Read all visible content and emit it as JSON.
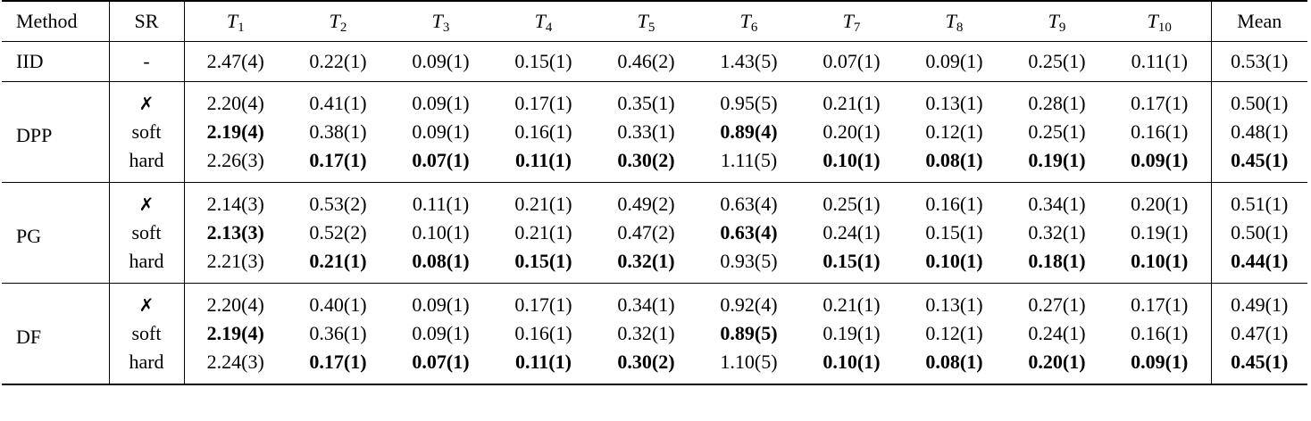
{
  "header": {
    "method": "Method",
    "sr": "SR",
    "tasks": [
      {
        "base": "T",
        "sub": "1"
      },
      {
        "base": "T",
        "sub": "2"
      },
      {
        "base": "T",
        "sub": "3"
      },
      {
        "base": "T",
        "sub": "4"
      },
      {
        "base": "T",
        "sub": "5"
      },
      {
        "base": "T",
        "sub": "6"
      },
      {
        "base": "T",
        "sub": "7"
      },
      {
        "base": "T",
        "sub": "8"
      },
      {
        "base": "T",
        "sub": "9"
      },
      {
        "base": "T",
        "sub": "10"
      }
    ],
    "mean": "Mean"
  },
  "iid": {
    "method": "IID",
    "sr": "-",
    "values": [
      "2.47(4)",
      "0.22(1)",
      "0.09(1)",
      "0.15(1)",
      "0.46(2)",
      "1.43(5)",
      "0.07(1)",
      "0.09(1)",
      "0.25(1)",
      "0.11(1)"
    ],
    "mean": "0.53(1)"
  },
  "groups": [
    {
      "method": "DPP",
      "rows": [
        {
          "sr": "✗",
          "values": [
            "2.20(4)",
            "0.41(1)",
            "0.09(1)",
            "0.17(1)",
            "0.35(1)",
            "0.95(5)",
            "0.21(1)",
            "0.13(1)",
            "0.28(1)",
            "0.17(1)"
          ],
          "mean": "0.50(1)",
          "bold": []
        },
        {
          "sr": "soft",
          "values": [
            "2.19(4)",
            "0.38(1)",
            "0.09(1)",
            "0.16(1)",
            "0.33(1)",
            "0.89(4)",
            "0.20(1)",
            "0.12(1)",
            "0.25(1)",
            "0.16(1)"
          ],
          "mean": "0.48(1)",
          "bold": [
            0,
            5
          ]
        },
        {
          "sr": "hard",
          "values": [
            "2.26(3)",
            "0.17(1)",
            "0.07(1)",
            "0.11(1)",
            "0.30(2)",
            "1.11(5)",
            "0.10(1)",
            "0.08(1)",
            "0.19(1)",
            "0.09(1)"
          ],
          "mean": "0.45(1)",
          "bold": [
            1,
            2,
            3,
            4,
            6,
            7,
            8,
            9,
            10
          ]
        }
      ]
    },
    {
      "method": "PG",
      "rows": [
        {
          "sr": "✗",
          "values": [
            "2.14(3)",
            "0.53(2)",
            "0.11(1)",
            "0.21(1)",
            "0.49(2)",
            "0.63(4)",
            "0.25(1)",
            "0.16(1)",
            "0.34(1)",
            "0.20(1)"
          ],
          "mean": "0.51(1)",
          "bold": []
        },
        {
          "sr": "soft",
          "values": [
            "2.13(3)",
            "0.52(2)",
            "0.10(1)",
            "0.21(1)",
            "0.47(2)",
            "0.63(4)",
            "0.24(1)",
            "0.15(1)",
            "0.32(1)",
            "0.19(1)"
          ],
          "mean": "0.50(1)",
          "bold": [
            0,
            5
          ]
        },
        {
          "sr": "hard",
          "values": [
            "2.21(3)",
            "0.21(1)",
            "0.08(1)",
            "0.15(1)",
            "0.32(1)",
            "0.93(5)",
            "0.15(1)",
            "0.10(1)",
            "0.18(1)",
            "0.10(1)"
          ],
          "mean": "0.44(1)",
          "bold": [
            1,
            2,
            3,
            4,
            6,
            7,
            8,
            9,
            10
          ]
        }
      ]
    },
    {
      "method": "DF",
      "rows": [
        {
          "sr": "✗",
          "values": [
            "2.20(4)",
            "0.40(1)",
            "0.09(1)",
            "0.17(1)",
            "0.34(1)",
            "0.92(4)",
            "0.21(1)",
            "0.13(1)",
            "0.27(1)",
            "0.17(1)"
          ],
          "mean": "0.49(1)",
          "bold": []
        },
        {
          "sr": "soft",
          "values": [
            "2.19(4)",
            "0.36(1)",
            "0.09(1)",
            "0.16(1)",
            "0.32(1)",
            "0.89(5)",
            "0.19(1)",
            "0.12(1)",
            "0.24(1)",
            "0.16(1)"
          ],
          "mean": "0.47(1)",
          "bold": [
            0,
            5
          ]
        },
        {
          "sr": "hard",
          "values": [
            "2.24(3)",
            "0.17(1)",
            "0.07(1)",
            "0.11(1)",
            "0.30(2)",
            "1.10(5)",
            "0.10(1)",
            "0.08(1)",
            "0.20(1)",
            "0.09(1)"
          ],
          "mean": "0.45(1)",
          "bold": [
            1,
            2,
            3,
            4,
            6,
            7,
            8,
            9,
            10
          ]
        }
      ]
    }
  ]
}
